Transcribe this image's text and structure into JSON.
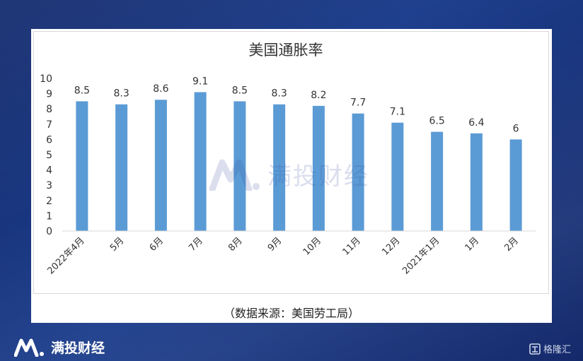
{
  "chart_data": {
    "type": "bar",
    "title": "美国通胀率",
    "categories": [
      "2022年4月",
      "5月",
      "6月",
      "7月",
      "8月",
      "9月",
      "10月",
      "11月",
      "12月",
      "2021年1月",
      "1月",
      "2月"
    ],
    "values": [
      8.5,
      8.3,
      8.6,
      9.1,
      8.5,
      8.3,
      8.2,
      7.7,
      7.1,
      6.5,
      6.4,
      6
    ],
    "value_labels": [
      "8.5",
      "8.3",
      "8.6",
      "9.1",
      "8.5",
      "8.3",
      "8.2",
      "7.7",
      "7.1",
      "6.5",
      "6.4",
      "6"
    ],
    "yticks": [
      "0",
      "1",
      "2",
      "3",
      "4",
      "5",
      "6",
      "7",
      "8",
      "9",
      "10"
    ],
    "ylim": [
      0,
      10
    ],
    "grid": false,
    "legend": "none",
    "bar_color": "#5b9bd5"
  },
  "source_text": "（数据来源：美国劳工局）",
  "watermark_text": "满投财经",
  "brand": {
    "name": "满投财经"
  },
  "corner_logo": {
    "text": "格隆汇"
  },
  "colors": {
    "background": "#1a3680",
    "card": "#ffffff",
    "text": "#222222"
  }
}
